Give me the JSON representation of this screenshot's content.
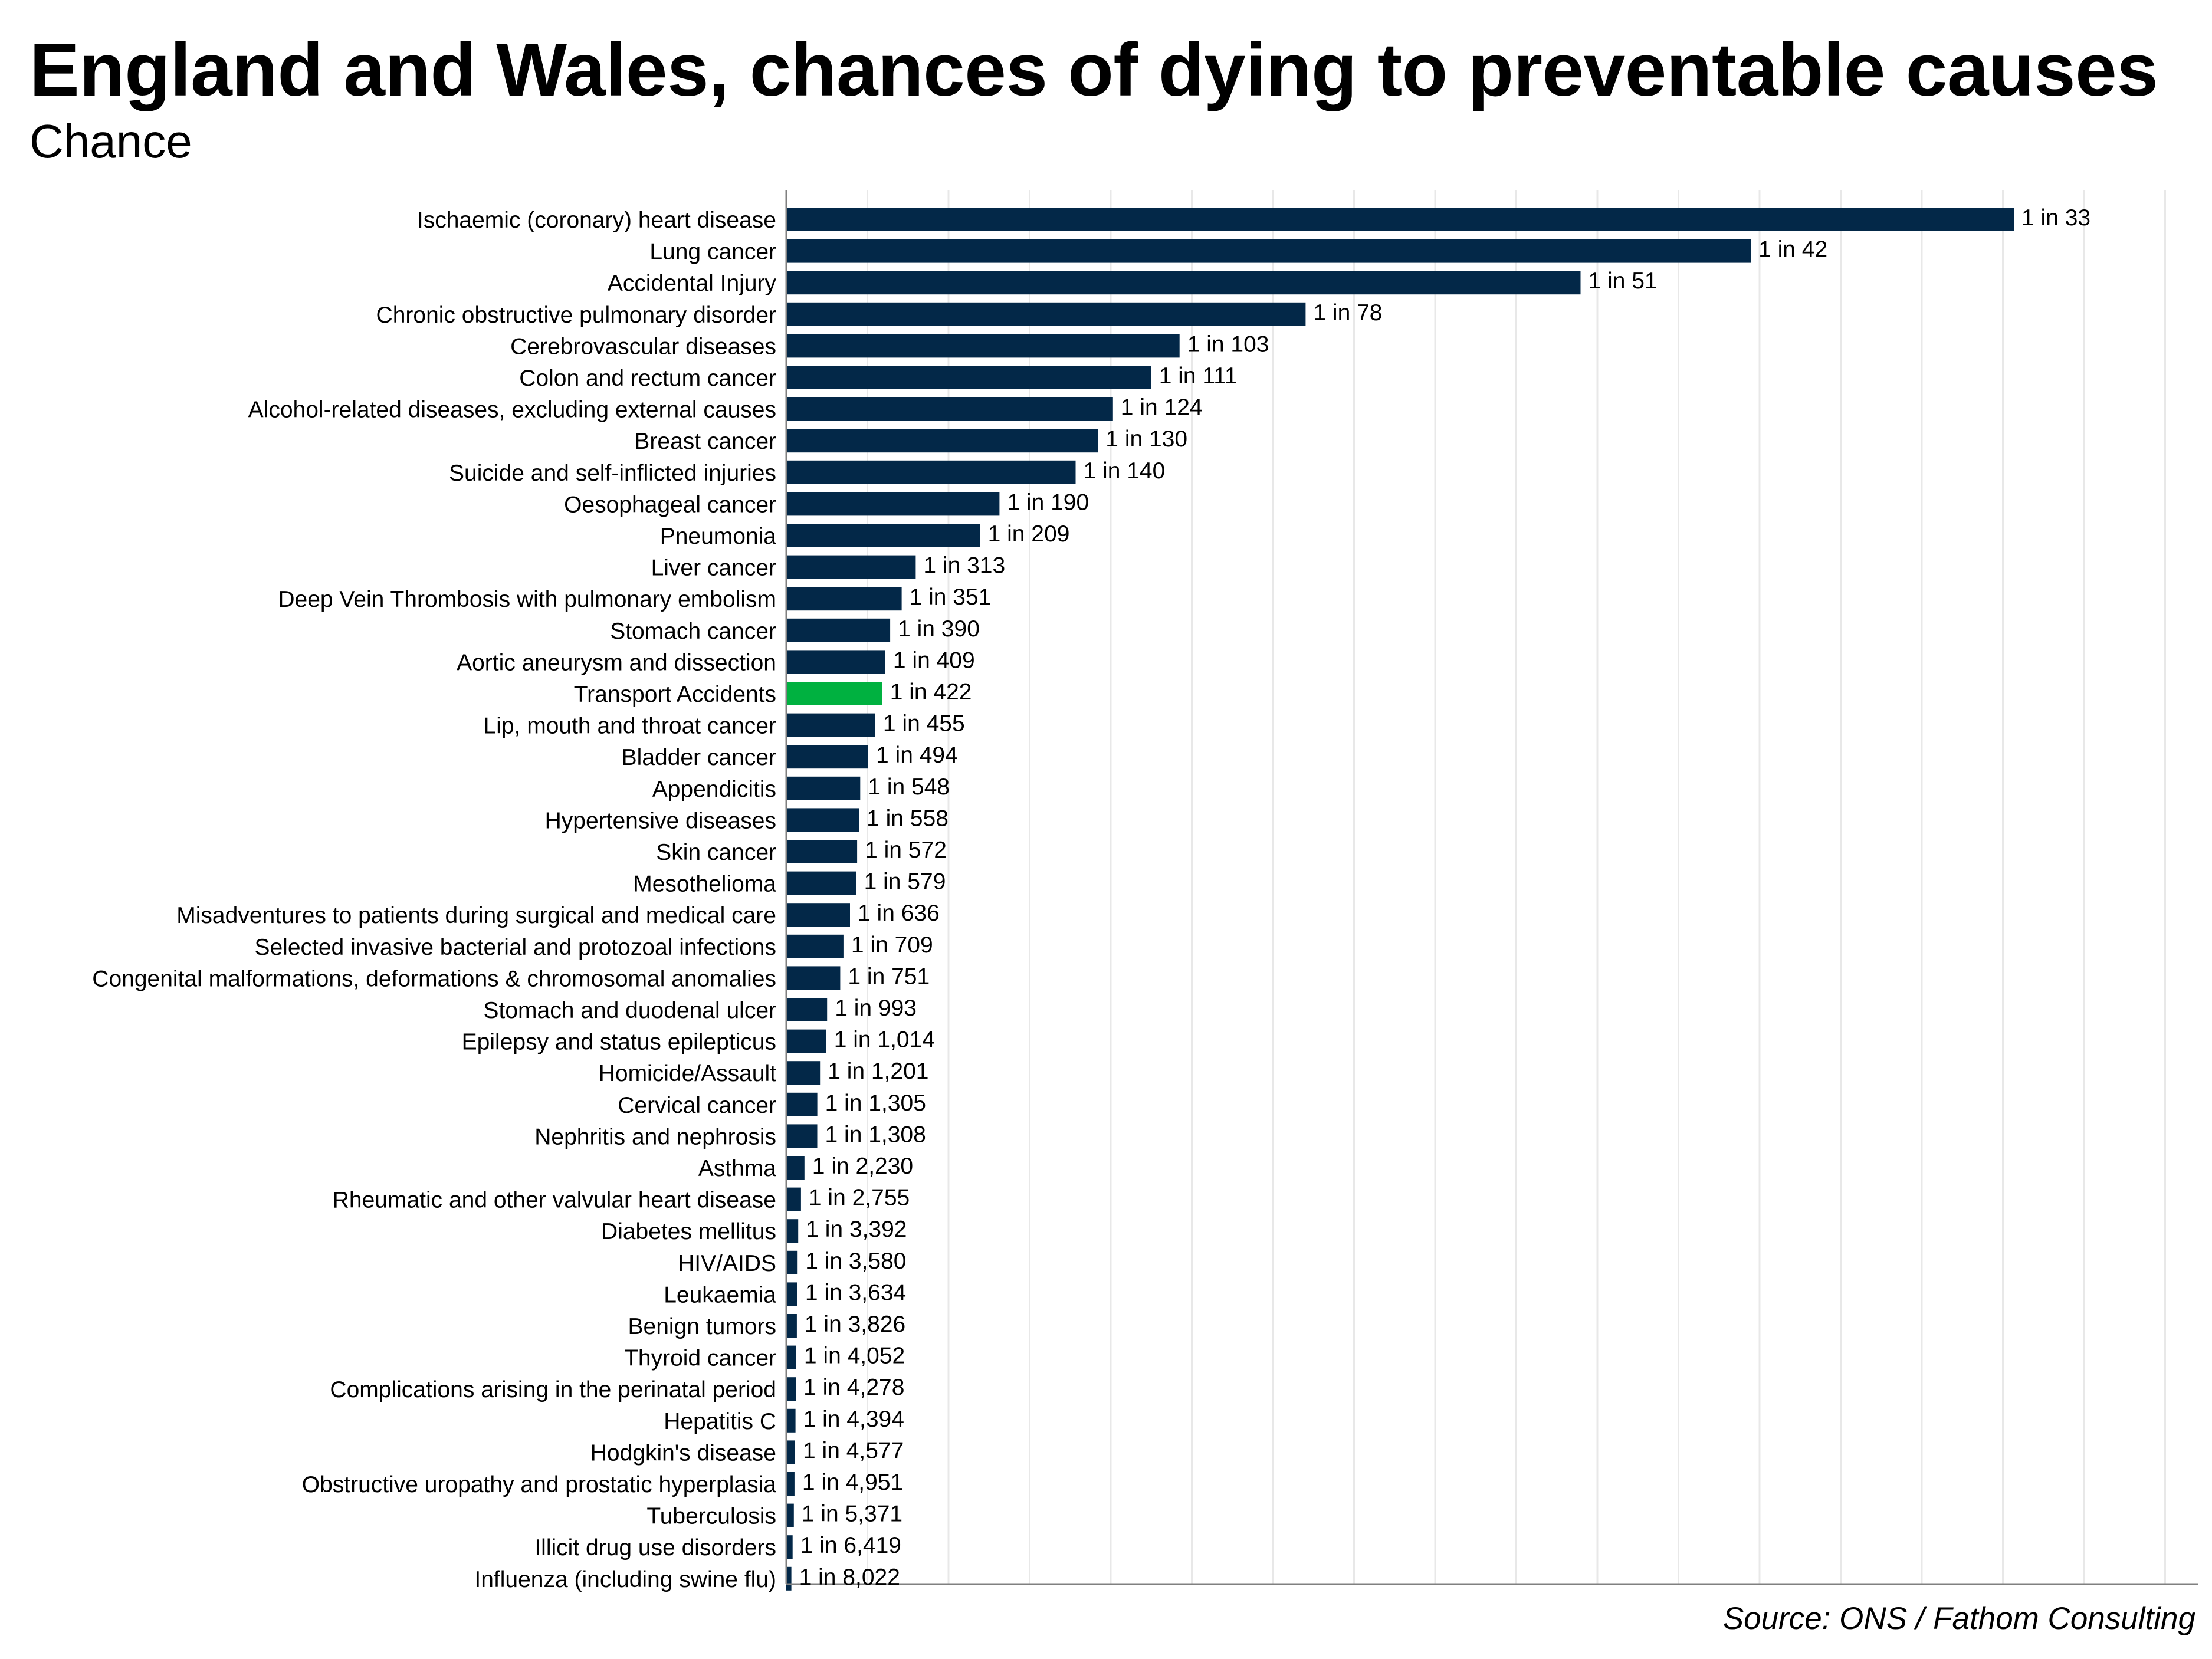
{
  "chart_data": {
    "type": "bar",
    "orientation": "horizontal",
    "title": "England and Wales, chances of dying to preventable causes",
    "subtitle": "Chance",
    "source": "Source: ONS / Fathom Consulting",
    "grid": true,
    "colors": {
      "default": "#032848",
      "highlight": "#00B140",
      "grid": "#E8E8E8",
      "axis": "#808080"
    },
    "highlight_category": "Transport Accidents",
    "categories": [
      "Ischaemic (coronary) heart disease",
      "Lung cancer",
      "Accidental Injury",
      "Chronic obstructive pulmonary disorder",
      "Cerebrovascular diseases",
      "Colon and rectum cancer",
      "Alcohol-related diseases, excluding external causes",
      "Breast cancer",
      "Suicide and self-inflicted injuries",
      "Oesophageal cancer",
      "Pneumonia",
      "Liver cancer",
      "Deep Vein Thrombosis with pulmonary embolism",
      "Stomach cancer",
      "Aortic aneurysm and dissection",
      "Transport Accidents",
      "Lip, mouth and throat cancer",
      "Bladder cancer",
      "Appendicitis",
      "Hypertensive diseases",
      "Skin cancer",
      "Mesothelioma",
      "Misadventures to patients during surgical and medical care",
      "Selected invasive bacterial and protozoal infections",
      "Congenital malformations, deformations & chromosomal anomalies",
      "Stomach and duodenal ulcer",
      "Epilepsy and status epilepticus",
      "Homicide/Assault",
      "Cervical cancer",
      "Nephritis and nephrosis",
      "Asthma",
      "Rheumatic and other valvular heart disease",
      "Diabetes mellitus",
      "HIV/AIDS",
      "Leukaemia",
      "Benign tumors",
      "Thyroid cancer",
      "Complications arising in the perinatal period",
      "Hepatitis C",
      "Hodgkin's disease",
      "Obstructive uropathy and prostatic hyperplasia",
      "Tuberculosis",
      "Illicit drug use disorders",
      "Influenza (including swine flu)"
    ],
    "odds": [
      33,
      42,
      51,
      78,
      103,
      111,
      124,
      130,
      140,
      190,
      209,
      313,
      351,
      390,
      409,
      422,
      455,
      494,
      548,
      558,
      572,
      579,
      636,
      709,
      751,
      993,
      1014,
      1201,
      1305,
      1308,
      2230,
      2755,
      3392,
      3580,
      3634,
      3826,
      4052,
      4278,
      4394,
      4577,
      4951,
      5371,
      6419,
      8022
    ],
    "data_labels": [
      "1 in 33",
      "1 in 42",
      "1 in 51",
      "1 in 78",
      "1 in 103",
      "1 in 111",
      "1 in 124",
      "1 in 130",
      "1 in 140",
      "1 in 190",
      "1 in 209",
      "1 in 313",
      "1 in 351",
      "1 in 390",
      "1 in 409",
      "1 in 422",
      "1 in 455",
      "1 in 494",
      "1 in 548",
      "1 in 558",
      "1 in 572",
      "1 in 579",
      "1 in 636",
      "1 in 709",
      "1 in 751",
      "1 in 993",
      "1 in 1,014",
      "1 in 1,201",
      "1 in 1,305",
      "1 in 1,308",
      "1 in 2,230",
      "1 in 2,755",
      "1 in 3,392",
      "1 in 3,580",
      "1 in 3,634",
      "1 in 3,826",
      "1 in 4,052",
      "1 in 4,278",
      "1 in 4,394",
      "1 in 4,577",
      "1 in 4,951",
      "1 in 5,371",
      "1 in 6,419",
      "1 in 8,022"
    ],
    "value_scale": "probability = 1 / odds",
    "xlim": [
      0,
      0.034
    ]
  }
}
